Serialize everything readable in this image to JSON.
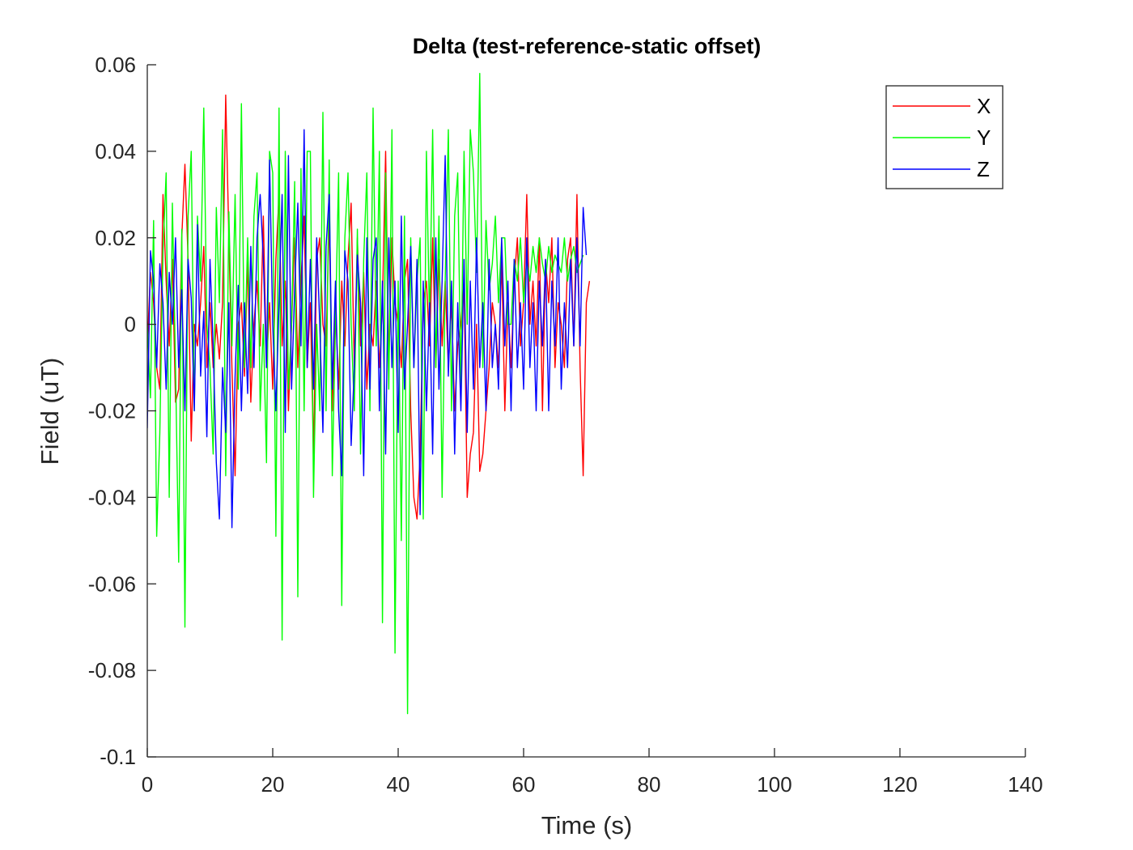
{
  "chart_data": {
    "type": "line",
    "title": "Delta (test-reference-static offset)",
    "xlabel": "Time (s)",
    "ylabel": "Field (uT)",
    "xlim": [
      0,
      140
    ],
    "ylim": [
      -0.1,
      0.06
    ],
    "xticks": [
      0,
      20,
      40,
      60,
      80,
      100,
      120,
      140
    ],
    "xtick_labels": [
      "0",
      "20",
      "40",
      "60",
      "80",
      "100",
      "120",
      "140"
    ],
    "yticks": [
      -0.1,
      -0.08,
      -0.06,
      -0.04,
      -0.02,
      0,
      0.02,
      0.04,
      0.06
    ],
    "ytick_labels": [
      "-0.1",
      "-0.08",
      "-0.06",
      "-0.04",
      "-0.02",
      "0",
      "0.02",
      "0.04",
      "0.06"
    ],
    "grid": false,
    "legend_position": "top-right",
    "sampling": {
      "x_start": 0,
      "x_step": 0.5
    },
    "series": [
      {
        "name": "X",
        "color": "#ff0000",
        "values": [
          -0.005,
          0.012,
          0.005,
          -0.01,
          -0.015,
          0.03,
          0.01,
          -0.005,
          0.015,
          -0.018,
          -0.015,
          0.02,
          0.037,
          0.015,
          -0.027,
          0.0,
          -0.005,
          0.005,
          0.018,
          -0.01,
          0.005,
          -0.01,
          0.0,
          -0.008,
          0.005,
          0.053,
          0.02,
          -0.01,
          -0.035,
          0.0,
          0.005,
          -0.012,
          0.015,
          -0.018,
          0.0,
          0.01,
          -0.005,
          0.025,
          -0.01,
          0.005,
          -0.015,
          0.015,
          0.03,
          -0.005,
          0.01,
          -0.02,
          0.0,
          0.02,
          -0.01,
          0.01,
          0.025,
          -0.01,
          0.005,
          -0.03,
          0.015,
          0.02,
          0.0,
          -0.005,
          0.025,
          -0.02,
          0.005,
          -0.015,
          0.01,
          -0.005,
          0.015,
          0.028,
          -0.01,
          0.02,
          -0.005,
          0.012,
          -0.015,
          0.0,
          -0.005,
          0.01,
          -0.01,
          0.005,
          0.04,
          -0.01,
          0.02,
          0.005,
          0.0,
          -0.01,
          0.01,
          0.015,
          -0.02,
          -0.04,
          -0.045,
          -0.03,
          0.005,
          0.01,
          -0.005,
          0.02,
          -0.01,
          0.015,
          -0.005,
          0.01,
          -0.01,
          0.005,
          -0.02,
          -0.005,
          0.0,
          0.01,
          -0.04,
          -0.03,
          -0.025,
          0.0,
          -0.034,
          -0.03,
          -0.02,
          -0.01,
          0.005,
          0.0,
          -0.01,
          0.015,
          -0.02,
          0.005,
          -0.01,
          0.01,
          0.02,
          -0.005,
          0.005,
          0.03,
          0.0,
          0.01,
          -0.005,
          0.02,
          -0.02,
          0.015,
          0.005,
          0.02,
          -0.01,
          0.005,
          0.0,
          -0.01,
          0.015,
          0.02,
          -0.005,
          0.03,
          -0.01,
          -0.035,
          0.005,
          0.01
        ]
      },
      {
        "name": "Y",
        "color": "#00ff00",
        "values": [
          0.0,
          -0.017,
          0.024,
          -0.049,
          -0.025,
          0.017,
          0.035,
          -0.04,
          0.028,
          -0.01,
          -0.055,
          0.022,
          -0.07,
          0.025,
          0.04,
          -0.02,
          0.025,
          0.01,
          0.05,
          0.0,
          -0.01,
          -0.03,
          0.027,
          0.005,
          0.045,
          -0.035,
          0.026,
          -0.005,
          0.03,
          -0.015,
          0.051,
          -0.01,
          0.02,
          -0.01,
          0.025,
          0.035,
          -0.02,
          0.0,
          -0.032,
          0.04,
          0.035,
          -0.049,
          0.05,
          -0.073,
          0.04,
          -0.015,
          0.0,
          0.033,
          -0.063,
          0.036,
          -0.02,
          0.04,
          0.04,
          -0.04,
          0.0,
          -0.02,
          0.049,
          -0.02,
          0.038,
          -0.035,
          0.0,
          0.035,
          -0.065,
          0.02,
          0.035,
          0.0,
          -0.02,
          0.022,
          -0.03,
          0.015,
          0.035,
          -0.02,
          0.05,
          -0.005,
          0.04,
          -0.069,
          0.035,
          -0.015,
          0.045,
          -0.076,
          0.01,
          -0.05,
          0.025,
          -0.09,
          0.02,
          -0.01,
          0.01,
          0.02,
          -0.045,
          0.04,
          0.0,
          0.045,
          -0.01,
          0.025,
          -0.04,
          0.01,
          0.045,
          -0.02,
          0.025,
          0.035,
          -0.015,
          0.04,
          0.0,
          0.045,
          0.035,
          0.012,
          0.058,
          -0.01,
          0.024,
          0.008,
          0.014,
          0.025,
          0.005,
          0.02,
          0.02,
          0.0,
          0.0,
          0.015,
          0.01,
          0.02,
          0.005,
          0.015,
          0.01,
          0.018,
          0.012,
          0.02,
          0.014,
          0.01,
          0.018,
          0.012,
          0.016,
          0.014,
          0.012,
          0.02,
          0.01,
          0.015,
          0.018,
          0.012,
          0.014,
          0.016
        ]
      },
      {
        "name": "Z",
        "color": "#0000ff",
        "values": [
          -0.024,
          0.017,
          0.01,
          -0.01,
          0.014,
          0.005,
          -0.015,
          0.012,
          0.0,
          0.02,
          -0.01,
          0.008,
          -0.02,
          0.015,
          0.006,
          -0.02,
          0.023,
          -0.012,
          0.003,
          -0.026,
          0.015,
          -0.005,
          -0.032,
          -0.045,
          -0.01,
          -0.025,
          0.005,
          -0.047,
          -0.012,
          0.009,
          -0.02,
          0.005,
          -0.016,
          0.018,
          -0.01,
          0.02,
          0.03,
          0.015,
          -0.01,
          0.038,
          0.0,
          -0.02,
          0.005,
          0.03,
          -0.025,
          0.039,
          -0.015,
          0.008,
          0.028,
          -0.005,
          0.045,
          -0.01,
          0.015,
          -0.015,
          0.02,
          0.0,
          -0.025,
          0.018,
          0.03,
          -0.015,
          0.01,
          -0.02,
          -0.035,
          0.017,
          0.01,
          -0.028,
          -0.01,
          0.016,
          0.005,
          -0.035,
          0.02,
          -0.015,
          0.015,
          0.02,
          -0.02,
          0.01,
          -0.03,
          0.02,
          -0.01,
          0.01,
          -0.025,
          0.025,
          -0.015,
          0.0,
          0.018,
          -0.01,
          0.015,
          -0.044,
          0.01,
          -0.02,
          0.005,
          -0.03,
          0.02,
          -0.015,
          0.01,
          0.039,
          -0.012,
          0.01,
          -0.03,
          0.005,
          -0.02,
          0.015,
          -0.025,
          0.01,
          -0.015,
          0.02,
          -0.01,
          0.005,
          -0.02,
          0.015,
          -0.01,
          0.0,
          -0.015,
          0.02,
          -0.005,
          0.01,
          -0.02,
          0.015,
          -0.01,
          0.005,
          -0.015,
          0.02,
          -0.01,
          0.005,
          -0.02,
          0.01,
          -0.005,
          0.015,
          -0.02,
          0.01,
          -0.005,
          0.02,
          -0.015,
          0.005,
          -0.01,
          0.015,
          -0.005,
          0.02,
          -0.005,
          0.027,
          0.016
        ]
      }
    ]
  }
}
